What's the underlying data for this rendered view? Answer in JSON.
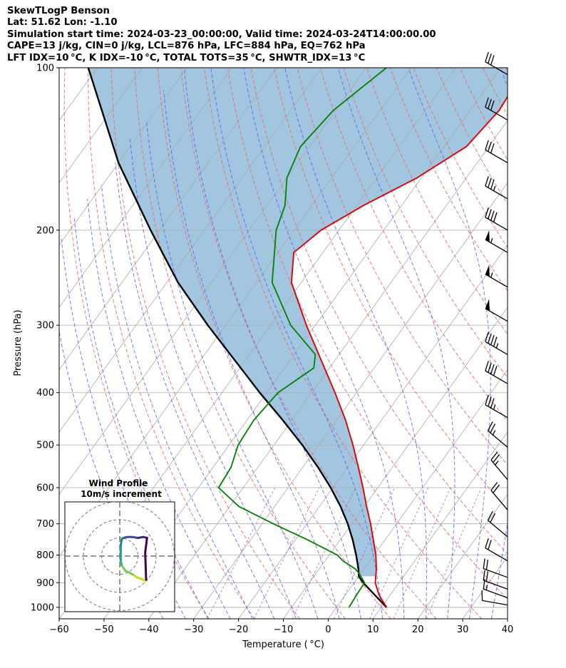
{
  "header": {
    "title": "SkewTLogP Benson",
    "location": "Lat: 51.62   Lon: -1.10",
    "times": "Simulation start time: 2024-03-23_00:00:00, Valid time: 2024-03-24T14:00:00.00",
    "indices1": "CAPE=13 j/kg, CIN=0 j/kg, LCL=876 hPa, LFC=884 hPa, EQ=762 hPa",
    "indices2": "LFT IDX=10 °C, K IDX=-10 °C, TOTAL TOTS=35 °C, SHWTR_IDX=13 °C"
  },
  "chart_data": {
    "type": "line",
    "title": "SkewTLogP Benson",
    "xlabel": "Temperature ( °C)",
    "ylabel": "Pressure (hPa)",
    "xlim": [
      -60,
      40
    ],
    "ylim": [
      1050,
      100
    ],
    "x_ticks": [
      -60,
      -50,
      -40,
      -30,
      -20,
      -10,
      0,
      10,
      20,
      30,
      40
    ],
    "y_ticks": [
      100,
      200,
      300,
      400,
      500,
      600,
      700,
      800,
      900,
      1000
    ],
    "grid": true,
    "colors": {
      "temperature": "#e00000",
      "dewpoint": "#008000",
      "parcel": "#000000",
      "cape_fill": "#a2c5e0",
      "isotherm": "#aaaaaa",
      "dry_adiabat": "#f06060",
      "moist_adiabat": "#5a5af0",
      "mixing_ratio": "#9b59b6"
    },
    "series": [
      {
        "name": "Temperature",
        "pressure": [
          1000,
          950,
          900,
          850,
          800,
          750,
          700,
          650,
          600,
          550,
          500,
          450,
          400,
          350,
          300,
          250,
          220,
          200,
          180,
          160,
          140,
          120,
          100
        ],
        "values": [
          11.2,
          7.6,
          4.7,
          2.8,
          0.4,
          -2.6,
          -5.8,
          -9.5,
          -13.3,
          -17.6,
          -22.4,
          -28.0,
          -34.8,
          -42.8,
          -52.0,
          -62.2,
          -66.5,
          -64.0,
          -58.5,
          -51.0,
          -45.0,
          -43.5,
          -44.5
        ]
      },
      {
        "name": "Dewpoint",
        "pressure": [
          1000,
          950,
          900,
          870,
          850,
          820,
          800,
          750,
          700,
          650,
          600,
          550,
          500,
          450,
          400,
          360,
          340,
          300,
          250,
          200,
          180,
          160,
          140,
          120,
          100
        ],
        "values": [
          2.8,
          2.5,
          2.3,
          0.0,
          -1.8,
          -6.0,
          -8.2,
          -17.2,
          -27.5,
          -38.0,
          -45.5,
          -46.0,
          -48.0,
          -48.5,
          -47.5,
          -43.5,
          -45.3,
          -55.5,
          -66.5,
          -74.0,
          -76.0,
          -80.0,
          -82.0,
          -80.5,
          -75.5
        ]
      },
      {
        "name": "Parcel",
        "pressure": [
          1000,
          950,
          900,
          876,
          850,
          800,
          750,
          700,
          650,
          600,
          550,
          500,
          450,
          400,
          350,
          300,
          250,
          200,
          150,
          100
        ],
        "values": [
          11.2,
          6.7,
          2.0,
          0.0,
          -1.2,
          -4.0,
          -7.2,
          -10.9,
          -15.3,
          -20.5,
          -26.6,
          -33.7,
          -42.0,
          -51.6,
          -62.0,
          -74.0,
          -87.5,
          -102.0,
          -120.0,
          -142.0
        ]
      }
    ],
    "wind_barbs": [
      {
        "pressure": 103,
        "speed_kt": 30,
        "direction_deg": 300
      },
      {
        "pressure": 125,
        "speed_kt": 30,
        "direction_deg": 300
      },
      {
        "pressure": 150,
        "speed_kt": 30,
        "direction_deg": 300
      },
      {
        "pressure": 175,
        "speed_kt": 35,
        "direction_deg": 300
      },
      {
        "pressure": 200,
        "speed_kt": 40,
        "direction_deg": 300
      },
      {
        "pressure": 220,
        "speed_kt": 55,
        "direction_deg": 300
      },
      {
        "pressure": 255,
        "speed_kt": 55,
        "direction_deg": 300
      },
      {
        "pressure": 295,
        "speed_kt": 50,
        "direction_deg": 300
      },
      {
        "pressure": 340,
        "speed_kt": 45,
        "direction_deg": 300
      },
      {
        "pressure": 385,
        "speed_kt": 40,
        "direction_deg": 300
      },
      {
        "pressure": 445,
        "speed_kt": 35,
        "direction_deg": 300
      },
      {
        "pressure": 505,
        "speed_kt": 25,
        "direction_deg": 310
      },
      {
        "pressure": 580,
        "speed_kt": 25,
        "direction_deg": 320
      },
      {
        "pressure": 660,
        "speed_kt": 20,
        "direction_deg": 320
      },
      {
        "pressure": 740,
        "speed_kt": 20,
        "direction_deg": 310
      },
      {
        "pressure": 820,
        "speed_kt": 20,
        "direction_deg": 300
      },
      {
        "pressure": 880,
        "speed_kt": 20,
        "direction_deg": 290
      },
      {
        "pressure": 925,
        "speed_kt": 20,
        "direction_deg": 290
      },
      {
        "pressure": 960,
        "speed_kt": 15,
        "direction_deg": 290
      },
      {
        "pressure": 990,
        "speed_kt": 10,
        "direction_deg": 280
      }
    ],
    "hodograph": {
      "title": "Wind Profile",
      "subtitle": "10m/s increment",
      "rings_ms": [
        10,
        20,
        30
      ],
      "u": [
        14,
        13,
        10,
        7,
        3,
        1,
        0.5,
        0.5,
        0.6,
        1,
        2,
        4,
        7,
        10,
        13,
        15,
        14,
        14.5
      ],
      "v": [
        -14,
        -13,
        -12,
        -10,
        -8,
        -5,
        -2,
        2,
        6,
        9,
        10,
        10.5,
        10.5,
        10,
        10.5,
        10,
        2,
        -13
      ]
    }
  }
}
